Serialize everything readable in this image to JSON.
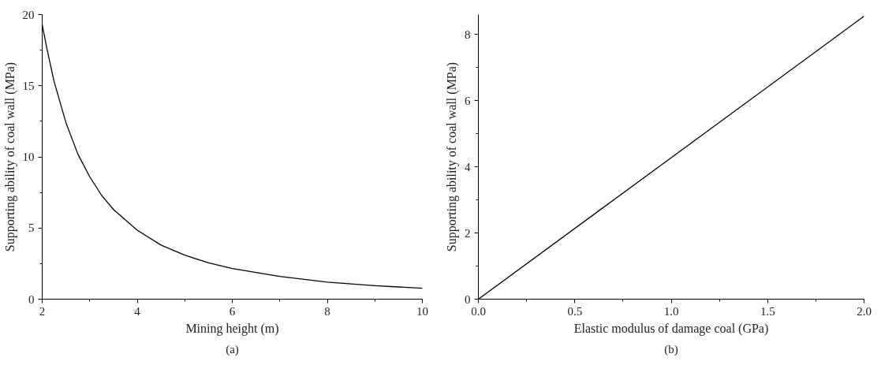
{
  "chart_data": [
    {
      "type": "line",
      "xlabel": "Mining height (m)",
      "ylabel": "Supporting ability of coal wall (MPa)",
      "annotations": [
        "(a)"
      ],
      "x": [
        2,
        2.1,
        2.25,
        2.5,
        2.75,
        3,
        3.25,
        3.5,
        4,
        4.5,
        5,
        5.5,
        6,
        7,
        8,
        9,
        10
      ],
      "series": [
        {
          "color": "#000000",
          "values": [
            19.3,
            17.6,
            15.3,
            12.4,
            10.2,
            8.6,
            7.3,
            6.3,
            4.85,
            3.8,
            3.1,
            2.55,
            2.15,
            1.6,
            1.2,
            0.95,
            0.77
          ]
        }
      ],
      "xlim": [
        2,
        10
      ],
      "ylim": [
        0,
        20
      ],
      "xticks": [
        2,
        4,
        6,
        8,
        10
      ],
      "yticks": [
        0,
        5,
        10,
        15,
        20
      ],
      "grid": false,
      "line_style": "solid"
    },
    {
      "type": "line",
      "xlabel": "Elastic modulus of damage coal (GPa)",
      "ylabel": "Supporting ability of coal wall (MPa)",
      "annotations": [
        "(b)"
      ],
      "x": [
        0,
        2
      ],
      "series": [
        {
          "color": "#000000",
          "values": [
            0,
            8.55
          ]
        }
      ],
      "xlim": [
        0,
        2
      ],
      "ylim": [
        0,
        8.6
      ],
      "xticks": [
        {
          "value": 0,
          "label": "0.0"
        },
        0.5,
        {
          "value": 1,
          "label": "1.0"
        },
        1.5,
        {
          "value": 2,
          "label": "2.0"
        }
      ],
      "yticks": [
        0,
        2,
        4,
        6,
        8
      ],
      "grid": false,
      "line_style": "solid"
    }
  ]
}
